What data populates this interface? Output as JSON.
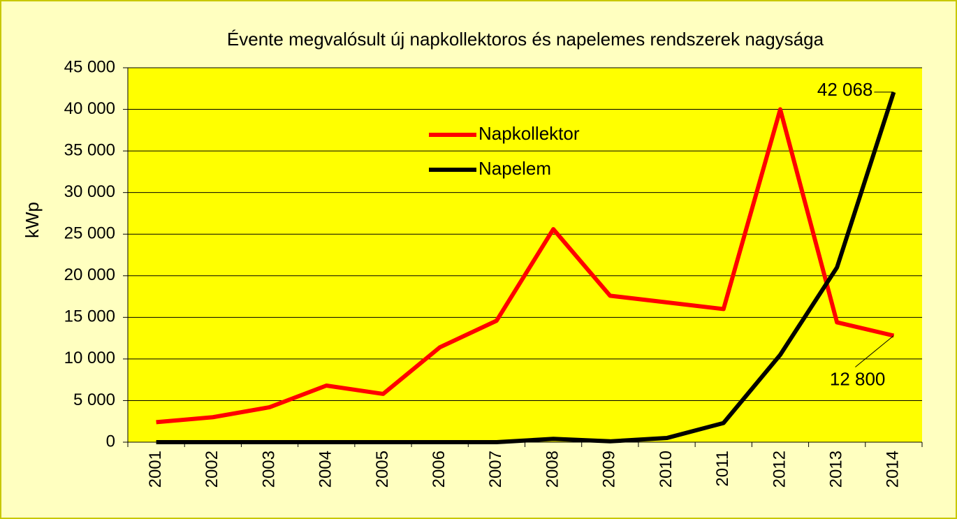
{
  "chart_data": {
    "type": "line",
    "title": "Évente megvalósult új napkollektoros és napelemes rendszerek nagysága",
    "y_label": "kWp",
    "categories": [
      "2001",
      "2002",
      "2003",
      "2004",
      "2005",
      "2006",
      "2007",
      "2008",
      "2009",
      "2010",
      "2011",
      "2012",
      "2013",
      "2014"
    ],
    "series": [
      {
        "name": "Napkollektor",
        "color": "#ff0000",
        "values": [
          2400,
          3000,
          4200,
          6800,
          5800,
          11400,
          14600,
          25600,
          17600,
          16800,
          16000,
          40000,
          14400,
          12800
        ],
        "value_labels": [
          null,
          null,
          null,
          null,
          null,
          null,
          null,
          null,
          null,
          null,
          null,
          null,
          null,
          "12 800"
        ]
      },
      {
        "name": "Napelem",
        "color": "#000000",
        "values": [
          0,
          0,
          0,
          0,
          0,
          0,
          0,
          400,
          100,
          500,
          2300,
          10500,
          21000,
          42068
        ],
        "value_labels": [
          null,
          null,
          null,
          null,
          null,
          null,
          null,
          null,
          null,
          null,
          null,
          null,
          null,
          "42 068"
        ]
      }
    ],
    "ylim": [
      0,
      45000
    ],
    "yticks": [
      0,
      {
        "value": 5000,
        "label": "5 000"
      },
      {
        "value": 10000,
        "label": "10 000"
      },
      {
        "value": 15000,
        "label": "15 000"
      },
      {
        "value": 20000,
        "label": "20 000"
      },
      {
        "value": 25000,
        "label": "25 000"
      },
      {
        "value": 30000,
        "label": "30 000"
      },
      {
        "value": 35000,
        "label": "35 000"
      },
      {
        "value": 40000,
        "label": "40 000"
      },
      {
        "value": 45000,
        "label": "45 000"
      }
    ],
    "grid": true,
    "plot_background": "#ffff00",
    "background": "#ffffc0"
  }
}
